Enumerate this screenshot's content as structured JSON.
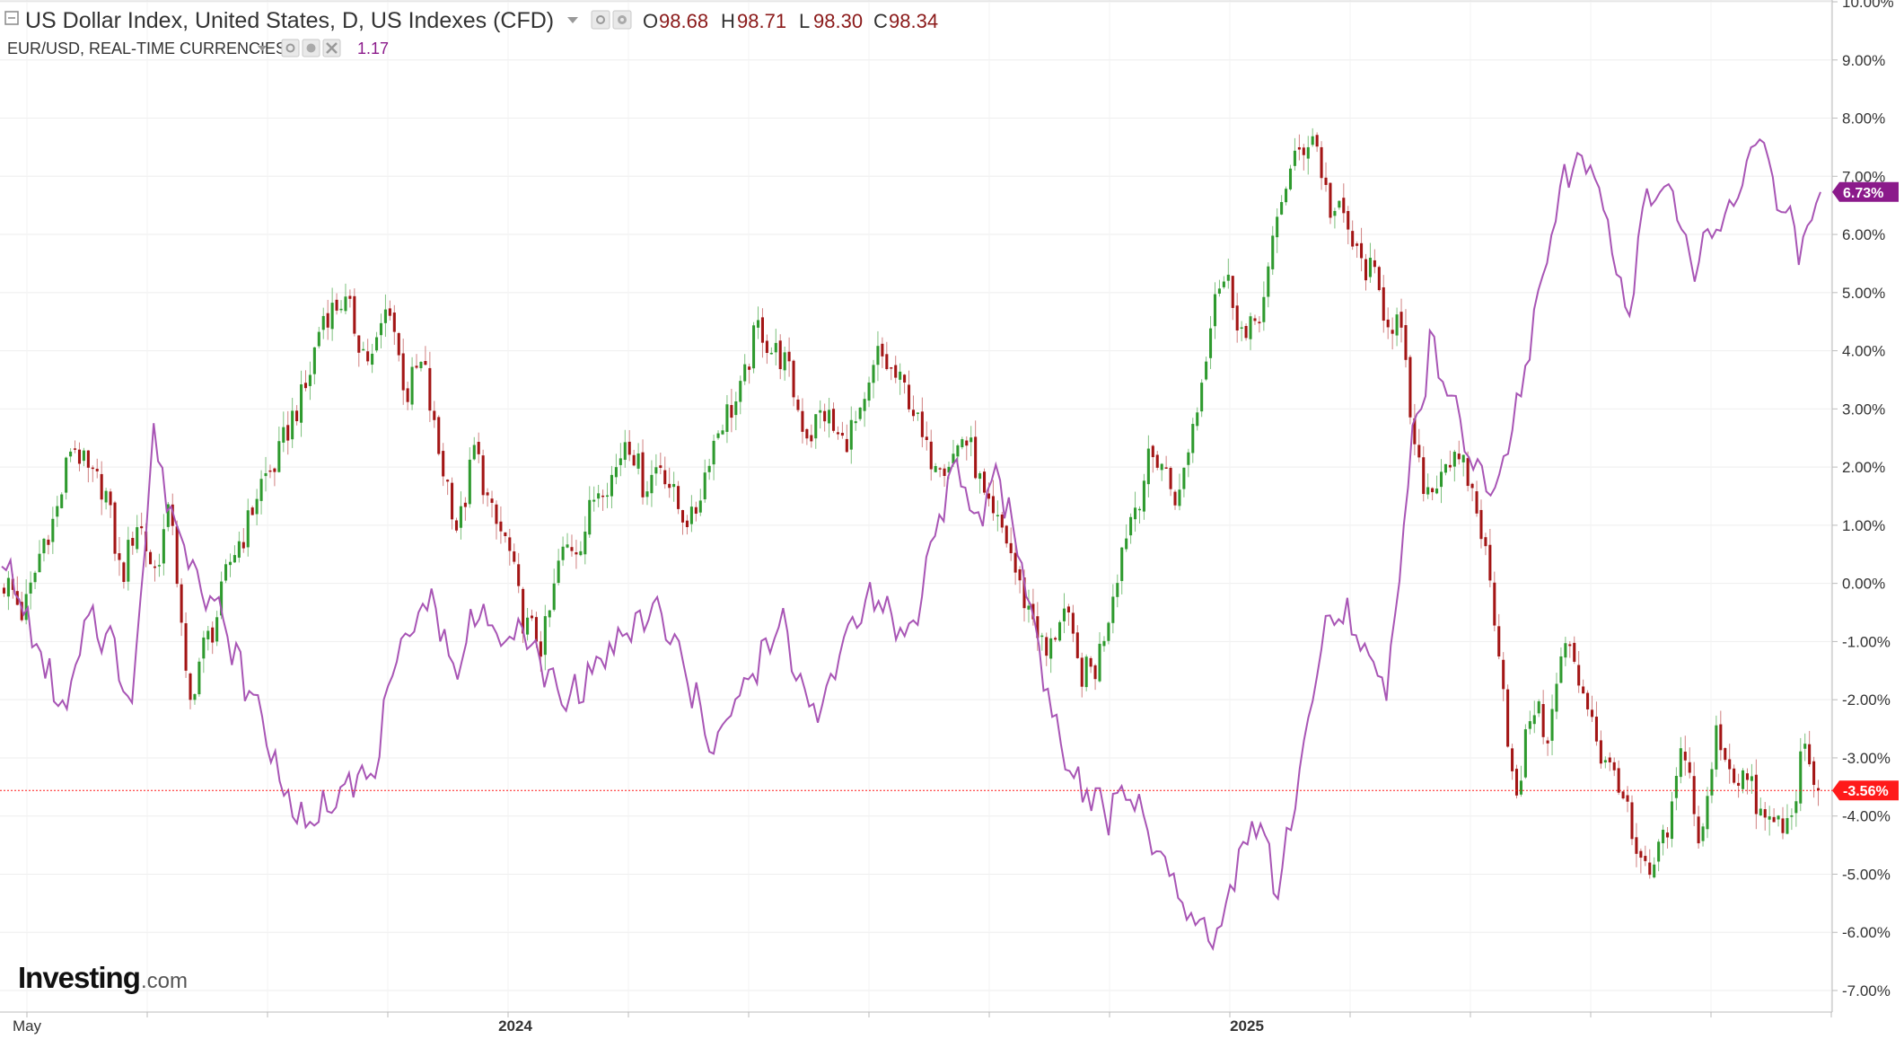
{
  "header": {
    "main_title": "US Dollar Index, United States, D, US Indexes (CFD)",
    "ohlc": [
      {
        "label": "O",
        "value": "98.68"
      },
      {
        "label": "H",
        "value": "98.71"
      },
      {
        "label": "L",
        "value": "98.30"
      },
      {
        "label": "C",
        "value": "98.34"
      }
    ],
    "compare_title": "EUR/USD, REAL-TIME CURRENCIES",
    "compare_value": "1.17"
  },
  "logo": {
    "brand": "Investing",
    "suffix": ".com"
  },
  "colors": {
    "up": "#2e9a2e",
    "down": "#a31515",
    "compare": "#a855b5",
    "compare_badge": "#8b1a8b",
    "last_badge": "#ff1a1a",
    "grid": "#eeeeee",
    "axis": "#cccccc"
  },
  "chart_data": {
    "type": "line",
    "ylabel": "",
    "ylim": [
      -7.0,
      10.0
    ],
    "y_ticks": [
      "10.00%",
      "9.00%",
      "8.00%",
      "7.00%",
      "6.00%",
      "5.00%",
      "4.00%",
      "3.00%",
      "2.00%",
      "1.00%",
      "0.00%",
      "-1.00%",
      "-2.00%",
      "-3.00%",
      "-4.00%",
      "-5.00%",
      "-6.00%",
      "-7.00%"
    ],
    "x_labels": [
      {
        "label": "May",
        "bold": false
      },
      {
        "label": "2024",
        "bold": true
      },
      {
        "label": "2025",
        "bold": true
      }
    ],
    "current_badges": [
      {
        "series": "EUR/USD",
        "value": "6.73%"
      },
      {
        "series": "US Dollar Index",
        "value": "-3.56%"
      }
    ],
    "series": [
      {
        "name": "US Dollar Index",
        "style": "candlestick",
        "values": [
          0.0,
          -0.5,
          0.3,
          1.2,
          2.3,
          2.0,
          1.5,
          0.2,
          1.0,
          0.3,
          1.2,
          -2.2,
          -1.0,
          -0.2,
          0.8,
          1.4,
          2.1,
          2.6,
          3.5,
          4.5,
          5.0,
          4.2,
          3.9,
          4.8,
          3.2,
          3.8,
          2.0,
          1.0,
          2.2,
          1.3,
          0.5,
          -0.6,
          -1.2,
          0.4,
          0.6,
          1.4,
          1.8,
          2.5,
          1.8,
          2.0,
          1.5,
          0.9,
          2.4,
          2.8,
          3.5,
          4.4,
          4.0,
          3.3,
          2.5,
          3.0,
          2.3,
          2.9,
          3.8,
          3.7,
          3.0,
          2.3,
          2.0,
          2.6,
          1.8,
          1.0,
          0.5,
          -0.5,
          -1.2,
          -0.5,
          -1.4,
          -1.6,
          0.0,
          1.0,
          2.1,
          2.0,
          1.5,
          3.0,
          5.0,
          5.2,
          4.0,
          5.0,
          6.5,
          7.5,
          7.6,
          6.5,
          6.0,
          5.5,
          4.8,
          4.5,
          2.2,
          1.5,
          2.3,
          1.8,
          1.0,
          -1.2,
          -3.8,
          -2.1,
          -2.5,
          -1.0,
          -1.8,
          -2.9,
          -3.3,
          -4.5,
          -5.2,
          -4.2,
          -2.8,
          -4.5,
          -2.6,
          -3.2,
          -3.6,
          -4.1,
          -4.3,
          -3.0,
          -3.56
        ]
      },
      {
        "name": "EUR/USD",
        "style": "line",
        "values": [
          0.5,
          -0.5,
          -1.5,
          -2.3,
          -0.5,
          -1.0,
          -2.0,
          2.5,
          1.0,
          0.3,
          -0.5,
          -1.5,
          -2.3,
          -3.5,
          -4.3,
          -3.8,
          -3.2,
          -3.5,
          -1.8,
          -0.5,
          -0.3,
          -1.7,
          -0.2,
          -1.2,
          -0.7,
          -1.5,
          -2.1,
          -1.6,
          -1.2,
          -0.9,
          -0.4,
          -1.0,
          -2.0,
          -2.8,
          -2.0,
          -1.4,
          -0.7,
          -1.8,
          -2.2,
          -0.8,
          -0.2,
          -0.5,
          -1.0,
          0.8,
          2.0,
          1.0,
          2.0,
          0.5,
          -1.3,
          -3.0,
          -3.6,
          -4.0,
          -3.4,
          -4.5,
          -5.0,
          -5.8,
          -6.2,
          -4.8,
          -4.0,
          -5.4,
          -3.0,
          -1.0,
          -0.5,
          -1.2,
          -1.8,
          2.0,
          4.1,
          3.0,
          2.0,
          1.5,
          3.0,
          5.0,
          6.8,
          7.5,
          6.5,
          4.6,
          6.5,
          6.9,
          5.5,
          6.0,
          6.5,
          7.9,
          6.6,
          5.7,
          6.73
        ]
      }
    ]
  }
}
